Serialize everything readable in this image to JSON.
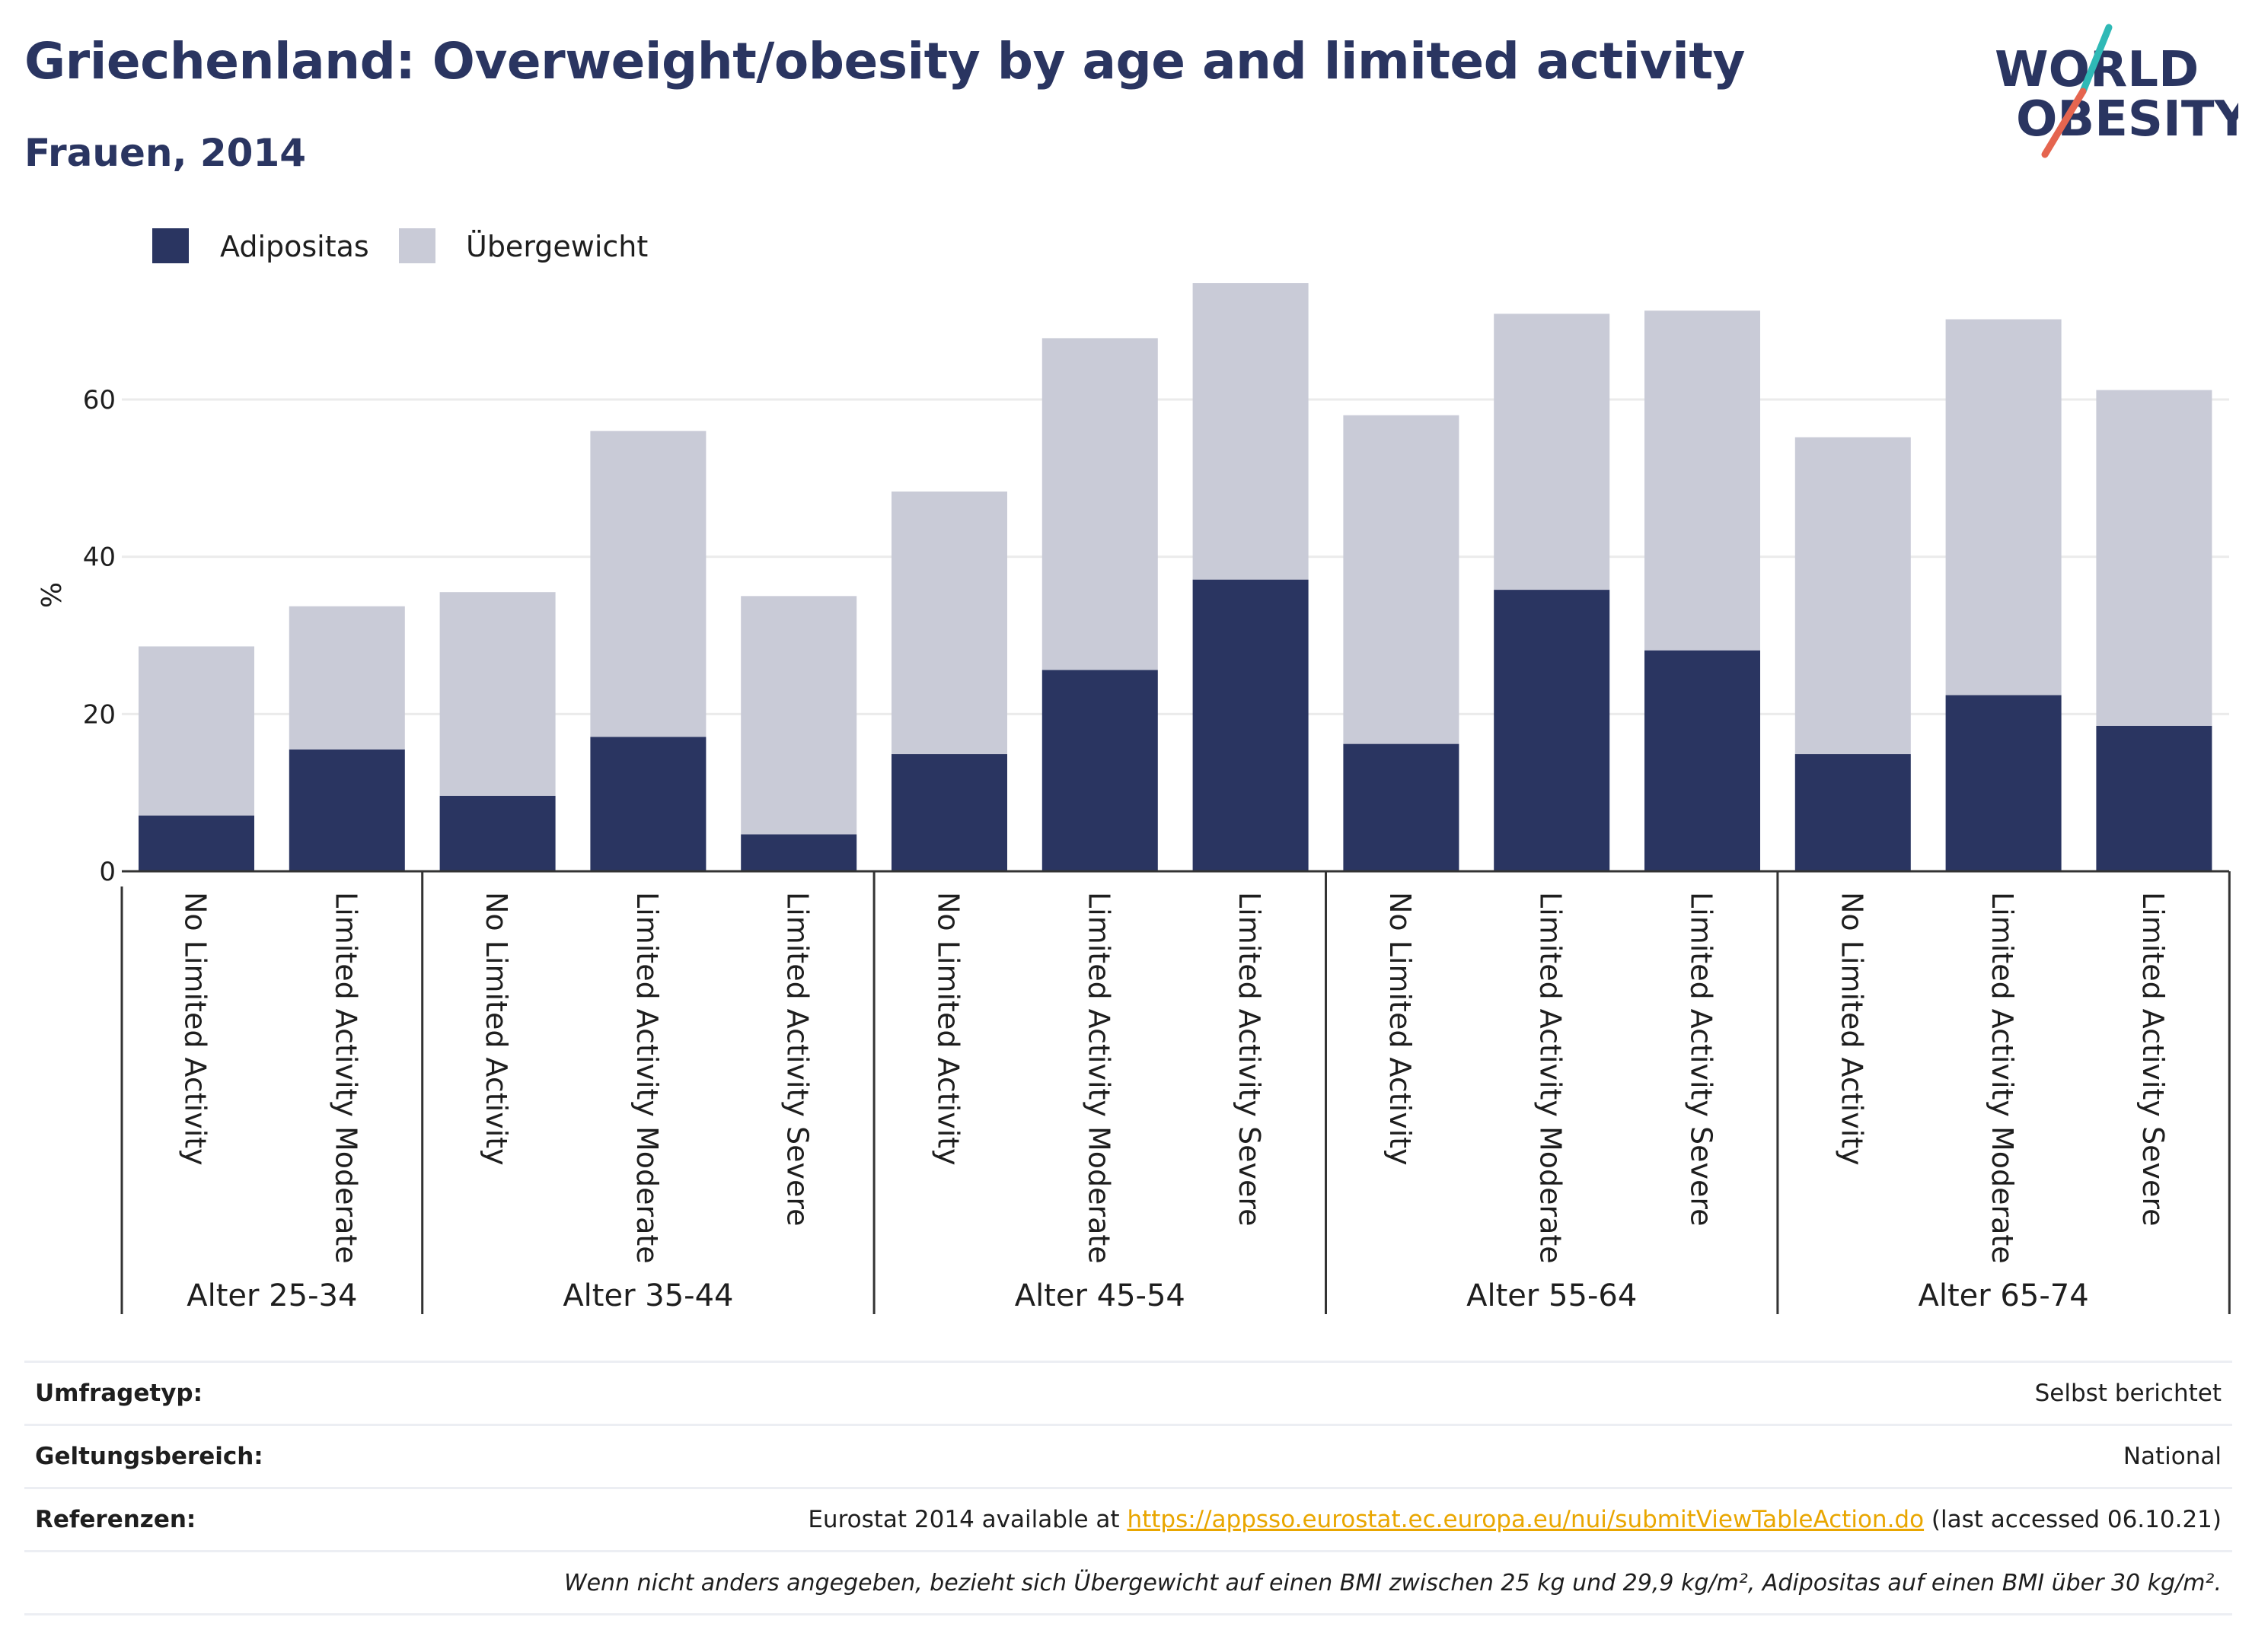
{
  "header": {
    "title": "Griechenland: Overweight/obesity by age and limited activity",
    "subtitle": "Frauen, 2014"
  },
  "logo": {
    "line1": "WORLD",
    "line2": "OBESITY",
    "slash_colors": [
      "#2fb9b6",
      "#e5654f"
    ],
    "text_color": "#2a3561"
  },
  "chart_data": {
    "type": "bar",
    "stacked": true,
    "title": "",
    "xlabel": "",
    "ylabel": "%",
    "ylim": [
      0,
      75
    ],
    "yticks": [
      0,
      20,
      40,
      60
    ],
    "grid": true,
    "legend_position": "top-left",
    "groups": [
      {
        "label": "Alter 25-34",
        "categories": [
          "No Limited Activity",
          "Limited Activity Moderate"
        ]
      },
      {
        "label": "Alter 35-44",
        "categories": [
          "No Limited Activity",
          "Limited Activity Moderate",
          "Limited Activity Severe"
        ]
      },
      {
        "label": "Alter 45-54",
        "categories": [
          "No Limited Activity",
          "Limited Activity Moderate",
          "Limited Activity Severe"
        ]
      },
      {
        "label": "Alter 55-64",
        "categories": [
          "No Limited Activity",
          "Limited Activity Moderate",
          "Limited Activity Severe"
        ]
      },
      {
        "label": "Alter 65-74",
        "categories": [
          "No Limited Activity",
          "Limited Activity Moderate",
          "Limited Activity Severe"
        ]
      }
    ],
    "series": [
      {
        "name": "Adipositas",
        "color": "#2a3561",
        "values": [
          7.1,
          15.5,
          9.6,
          17.1,
          4.7,
          14.9,
          25.6,
          37.1,
          16.2,
          35.8,
          28.1,
          14.9,
          22.4,
          18.5
        ]
      },
      {
        "name": "Übergewicht",
        "color": "#c9cbd7",
        "values": [
          21.5,
          18.2,
          25.9,
          38.9,
          30.3,
          33.4,
          42.2,
          37.7,
          41.8,
          35.1,
          43.2,
          40.3,
          47.8,
          42.7
        ]
      }
    ]
  },
  "info": {
    "survey_type_label": "Umfragetyp:",
    "survey_type_value": "Selbst berichtet",
    "scope_label": "Geltungsbereich:",
    "scope_value": "National",
    "references_label": "Referenzen:",
    "references_prefix": "Eurostat 2014 available at ",
    "references_link": "https://appsso.eurostat.ec.europa.eu/nui/submitViewTableAction.do",
    "references_suffix": " (last accessed 06.10.21)",
    "note": "Wenn nicht anders angegeben, bezieht sich Übergewicht auf einen BMI zwischen 25 kg und 29,9 kg/m², Adipositas auf einen BMI über 30 kg/m²."
  }
}
